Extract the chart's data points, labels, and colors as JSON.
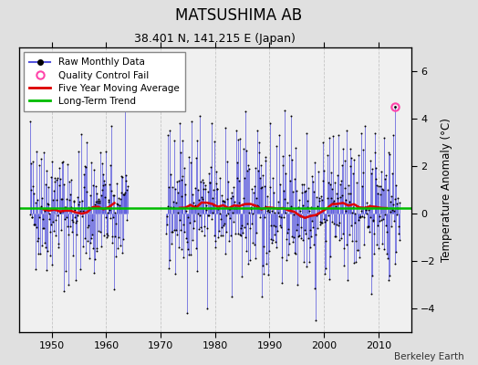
{
  "title": "MATSUSHIMA AB",
  "subtitle": "38.401 N, 141.215 E (Japan)",
  "ylabel": "Temperature Anomaly (°C)",
  "source": "Berkeley Earth",
  "xlim": [
    1944,
    2016
  ],
  "ylim": [
    -5,
    7
  ],
  "yticks": [
    -4,
    -2,
    0,
    2,
    4,
    6
  ],
  "xticks": [
    1950,
    1960,
    1970,
    1980,
    1990,
    2000,
    2010
  ],
  "long_term_trend_y": 0.22,
  "fig_background": "#e0e0e0",
  "plot_background": "#f0f0f0",
  "line_color": "#5555dd",
  "dot_color": "#000000",
  "moving_avg_color": "#dd0000",
  "trend_color": "#00bb00",
  "qc_fail_color": "#ff44aa",
  "qc_fail_year": 2013.0,
  "qc_fail_value": 4.5,
  "gap_start": 1964,
  "gap_end": 1971,
  "seed": 42
}
